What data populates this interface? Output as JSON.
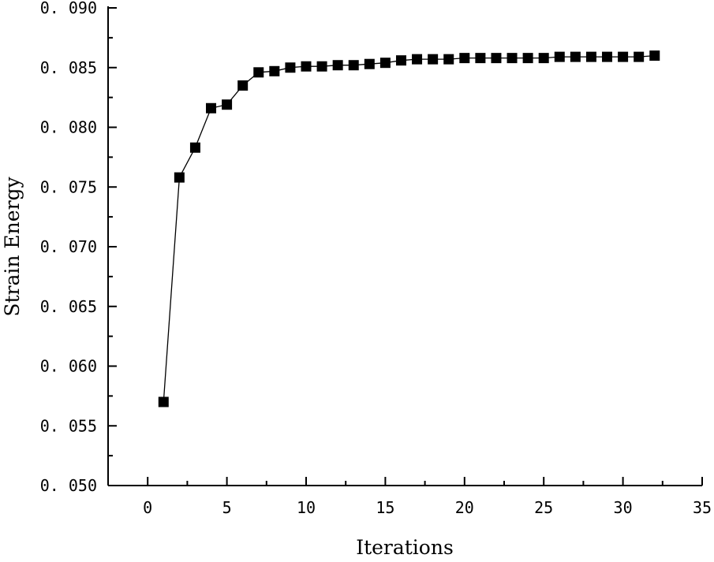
{
  "chart_data": {
    "type": "line",
    "title": "",
    "xlabel": "Iterations",
    "ylabel": "Strain Energy",
    "xlim": [
      -2.5,
      35
    ],
    "ylim": [
      0.05,
      0.09
    ],
    "x_ticks": [
      0,
      5,
      10,
      15,
      20,
      25,
      30,
      35
    ],
    "x_tick_labels": [
      "0",
      "5",
      "10",
      "15",
      "20",
      "25",
      "30",
      "35"
    ],
    "y_ticks": [
      0.05,
      0.055,
      0.06,
      0.065,
      0.07,
      0.075,
      0.08,
      0.085,
      0.09
    ],
    "y_tick_labels": [
      "0. 050",
      "0. 055",
      "0. 060",
      "0. 065",
      "0. 070",
      "0. 075",
      "0. 080",
      "0. 085",
      "0. 090"
    ],
    "grid": false,
    "legend": "none",
    "marker": "square",
    "colors": {
      "series": "#000000",
      "axis": "#000000",
      "background": "#ffffff"
    },
    "series": [
      {
        "x": [
          1,
          2,
          3,
          4,
          5,
          6,
          7,
          8,
          9,
          10,
          11,
          12,
          13,
          14,
          15,
          16,
          17,
          18,
          19,
          20,
          21,
          22,
          23,
          24,
          25,
          26,
          27,
          28,
          29,
          30,
          31,
          32
        ],
        "values": [
          0.057,
          0.0758,
          0.0783,
          0.0816,
          0.0819,
          0.0835,
          0.0846,
          0.0847,
          0.085,
          0.0851,
          0.0851,
          0.0852,
          0.0852,
          0.0853,
          0.0854,
          0.0856,
          0.0857,
          0.0857,
          0.0857,
          0.0858,
          0.0858,
          0.0858,
          0.0858,
          0.0858,
          0.0858,
          0.0859,
          0.0859,
          0.0859,
          0.0859,
          0.0859,
          0.0859,
          0.086
        ]
      }
    ]
  }
}
